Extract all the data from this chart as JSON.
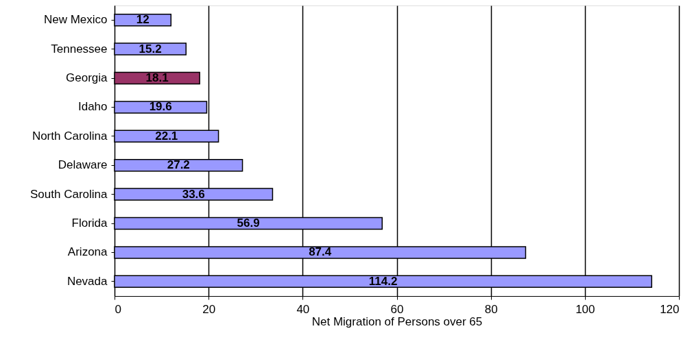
{
  "chart_data": {
    "type": "bar",
    "orientation": "horizontal",
    "xlabel": "Net Migration of Persons over 65",
    "categories": [
      "New Mexico",
      "Tennessee",
      "Georgia",
      "Idaho",
      "North Carolina",
      "Delaware",
      "South Carolina",
      "Florida",
      "Arizona",
      "Nevada"
    ],
    "values": [
      12,
      15.2,
      18.1,
      19.6,
      22.1,
      27.2,
      33.6,
      56.9,
      87.4,
      114.2
    ],
    "colors": [
      "#9999ff",
      "#9999ff",
      "#993366",
      "#9999ff",
      "#9999ff",
      "#9999ff",
      "#9999ff",
      "#9999ff",
      "#9999ff",
      "#9999ff"
    ],
    "xlim": [
      0,
      120
    ],
    "xticks": [
      0,
      20,
      40,
      60,
      80,
      100,
      120
    ],
    "grid": "x",
    "data_labels": true
  }
}
